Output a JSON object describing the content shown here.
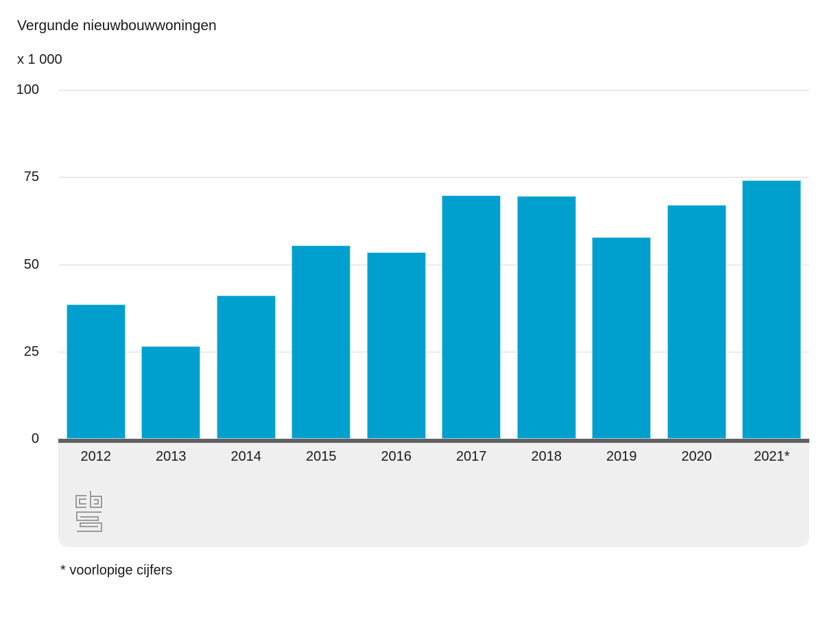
{
  "title": "Vergunde nieuwbouwwoningen",
  "unit_label": "x 1 000",
  "footnote": "* voorlopige cijfers",
  "logo_name": "cbs-logo",
  "colors": {
    "bar": "#00a0ce",
    "bar_edge": "#9fd9ec",
    "gridline": "#d9d9d9",
    "axis_line": "#616161",
    "band_background": "#efefef",
    "text": "#1a1a1a",
    "logo": "#9b9b9b"
  },
  "chart_data": {
    "type": "bar",
    "title": "Vergunde nieuwbouwwoningen",
    "xlabel": "",
    "ylabel": "x 1 000",
    "categories": [
      "2012",
      "2013",
      "2014",
      "2015",
      "2016",
      "2017",
      "2018",
      "2019",
      "2020",
      "2021*"
    ],
    "values": [
      38.6,
      26.5,
      41.0,
      55.5,
      53.4,
      69.7,
      69.5,
      57.8,
      66.9,
      74.0
    ],
    "ylim": [
      0,
      100
    ],
    "yticks": [
      0,
      25,
      50,
      75,
      100
    ],
    "grid": true,
    "legend": false,
    "footnote": "* voorlopige cijfers"
  }
}
